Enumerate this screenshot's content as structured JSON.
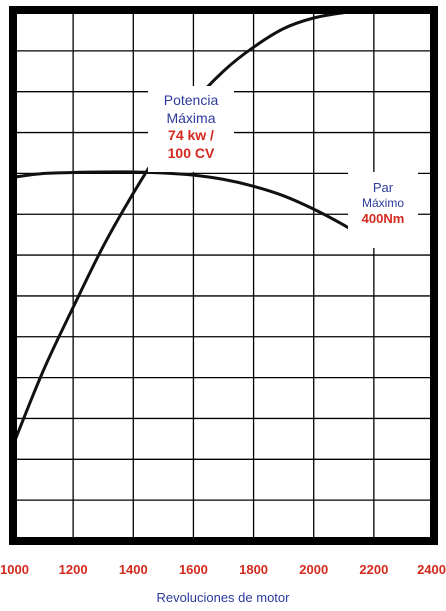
{
  "chart_data": {
    "type": "line",
    "xlabel": "Revoluciones de motor",
    "ylabel": "",
    "title": "",
    "xlim": [
      1000,
      2400
    ],
    "x_ticks": [
      "1000",
      "1200",
      "1400",
      "1600",
      "1800",
      "2000",
      "2200",
      "2400"
    ],
    "grid": true,
    "series": [
      {
        "key": "power",
        "x": [
          1000,
          1100,
          1200,
          1300,
          1400,
          1500,
          1600,
          1700,
          1800,
          1900,
          2000,
          2100,
          2200
        ],
        "y": [
          0.18,
          0.32,
          0.44,
          0.555,
          0.655,
          0.745,
          0.825,
          0.885,
          0.93,
          0.965,
          0.985,
          0.995,
          1.0
        ]
      },
      {
        "key": "torque",
        "x": [
          1000,
          1100,
          1200,
          1300,
          1400,
          1500,
          1600,
          1700,
          1800,
          1900,
          2000,
          2100,
          2200
        ],
        "y": [
          0.685,
          0.692,
          0.694,
          0.695,
          0.695,
          0.693,
          0.689,
          0.681,
          0.668,
          0.65,
          0.625,
          0.595,
          0.56
        ]
      }
    ],
    "annotations": {
      "power": {
        "line1": "Potencia",
        "line2": "Máxima",
        "value1": "74 kw /",
        "value2": "100 CV"
      },
      "torque": {
        "line1": "Par",
        "line2": "Máximo",
        "value": "400Nm"
      }
    }
  },
  "colors": {
    "frame": "#000000",
    "grid": "#000000",
    "curve": "#111111",
    "tick_label": "#d42a1e",
    "axis_title": "#2b3a9b",
    "annotation_title": "#2b3a9b",
    "annotation_value": "#d42a1e"
  }
}
